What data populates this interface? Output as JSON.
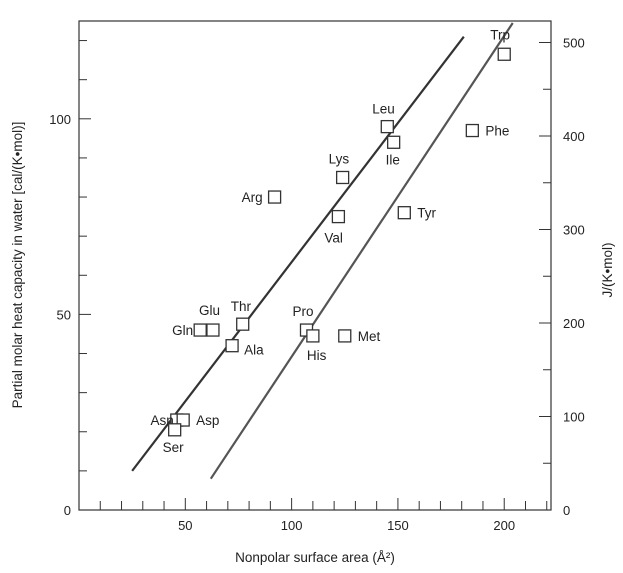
{
  "chart_data": {
    "type": "scatter",
    "xlabel": "Nonpolar surface area (Å²)",
    "ylabel": "Partial molar heat capacity in water [cal/(K•mol)]",
    "y2label": "J/(K•mol)",
    "xlim": [
      0,
      222
    ],
    "ylim": [
      0,
      125
    ],
    "y2lim": [
      0,
      523
    ],
    "x_ticks": [
      50,
      100,
      150,
      200
    ],
    "x_tick_labels": [
      "50",
      "100",
      "150",
      "200"
    ],
    "y_ticks": [
      0,
      50,
      100
    ],
    "y_tick_labels": [
      "0",
      "50",
      "100"
    ],
    "y2_ticks": [
      0,
      100,
      200,
      300,
      400,
      500
    ],
    "y2_tick_labels": [
      "0",
      "100",
      "200",
      "300",
      "400",
      "500"
    ],
    "grid": false,
    "marker": "open-square",
    "points": [
      {
        "label": "Trp",
        "x": 200,
        "y": 116.5
      },
      {
        "label": "Phe",
        "x": 185,
        "y": 97
      },
      {
        "label": "Leu",
        "x": 145,
        "y": 98
      },
      {
        "label": "Ile",
        "x": 148,
        "y": 94
      },
      {
        "label": "Lys",
        "x": 124,
        "y": 85
      },
      {
        "label": "Tyr",
        "x": 153,
        "y": 76
      },
      {
        "label": "Val",
        "x": 122,
        "y": 75
      },
      {
        "label": "Arg",
        "x": 92,
        "y": 80
      },
      {
        "label": "Thr",
        "x": 77,
        "y": 47.5
      },
      {
        "label": "Glu",
        "x": 63,
        "y": 46
      },
      {
        "label": "Gln",
        "x": 57,
        "y": 46
      },
      {
        "label": "Ala",
        "x": 72,
        "y": 42
      },
      {
        "label": "Pro",
        "x": 107,
        "y": 46
      },
      {
        "label": "His",
        "x": 110,
        "y": 44.5
      },
      {
        "label": "Met",
        "x": 125,
        "y": 44.5
      },
      {
        "label": "Asn",
        "x": 46,
        "y": 23
      },
      {
        "label": "Asp",
        "x": 49,
        "y": 23
      },
      {
        "label": "Ser",
        "x": 45,
        "y": 20.5
      }
    ],
    "lines": [
      {
        "x": [
          25,
          181
        ],
        "y": [
          10,
          121
        ],
        "color": "#333333"
      },
      {
        "x": [
          62,
          204
        ],
        "y": [
          8,
          124.5
        ],
        "color": "#555555"
      }
    ]
  }
}
